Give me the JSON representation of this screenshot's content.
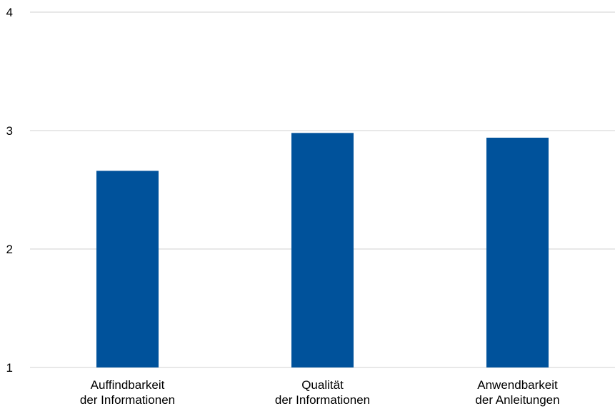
{
  "chart_data": {
    "type": "bar",
    "categories": [
      [
        "Auffindbarkeit",
        "der Informationen"
      ],
      [
        "Qualität",
        "der Informationen"
      ],
      [
        "Anwendbarkeit",
        "der Anleitungen"
      ]
    ],
    "values": [
      2.66,
      2.98,
      2.94
    ],
    "yticks": [
      "1",
      "2",
      "3",
      "4"
    ],
    "ylim": [
      1,
      4
    ],
    "grid": true,
    "colors": {
      "bar": "#00529b",
      "grid": "#d9d9d9"
    }
  }
}
